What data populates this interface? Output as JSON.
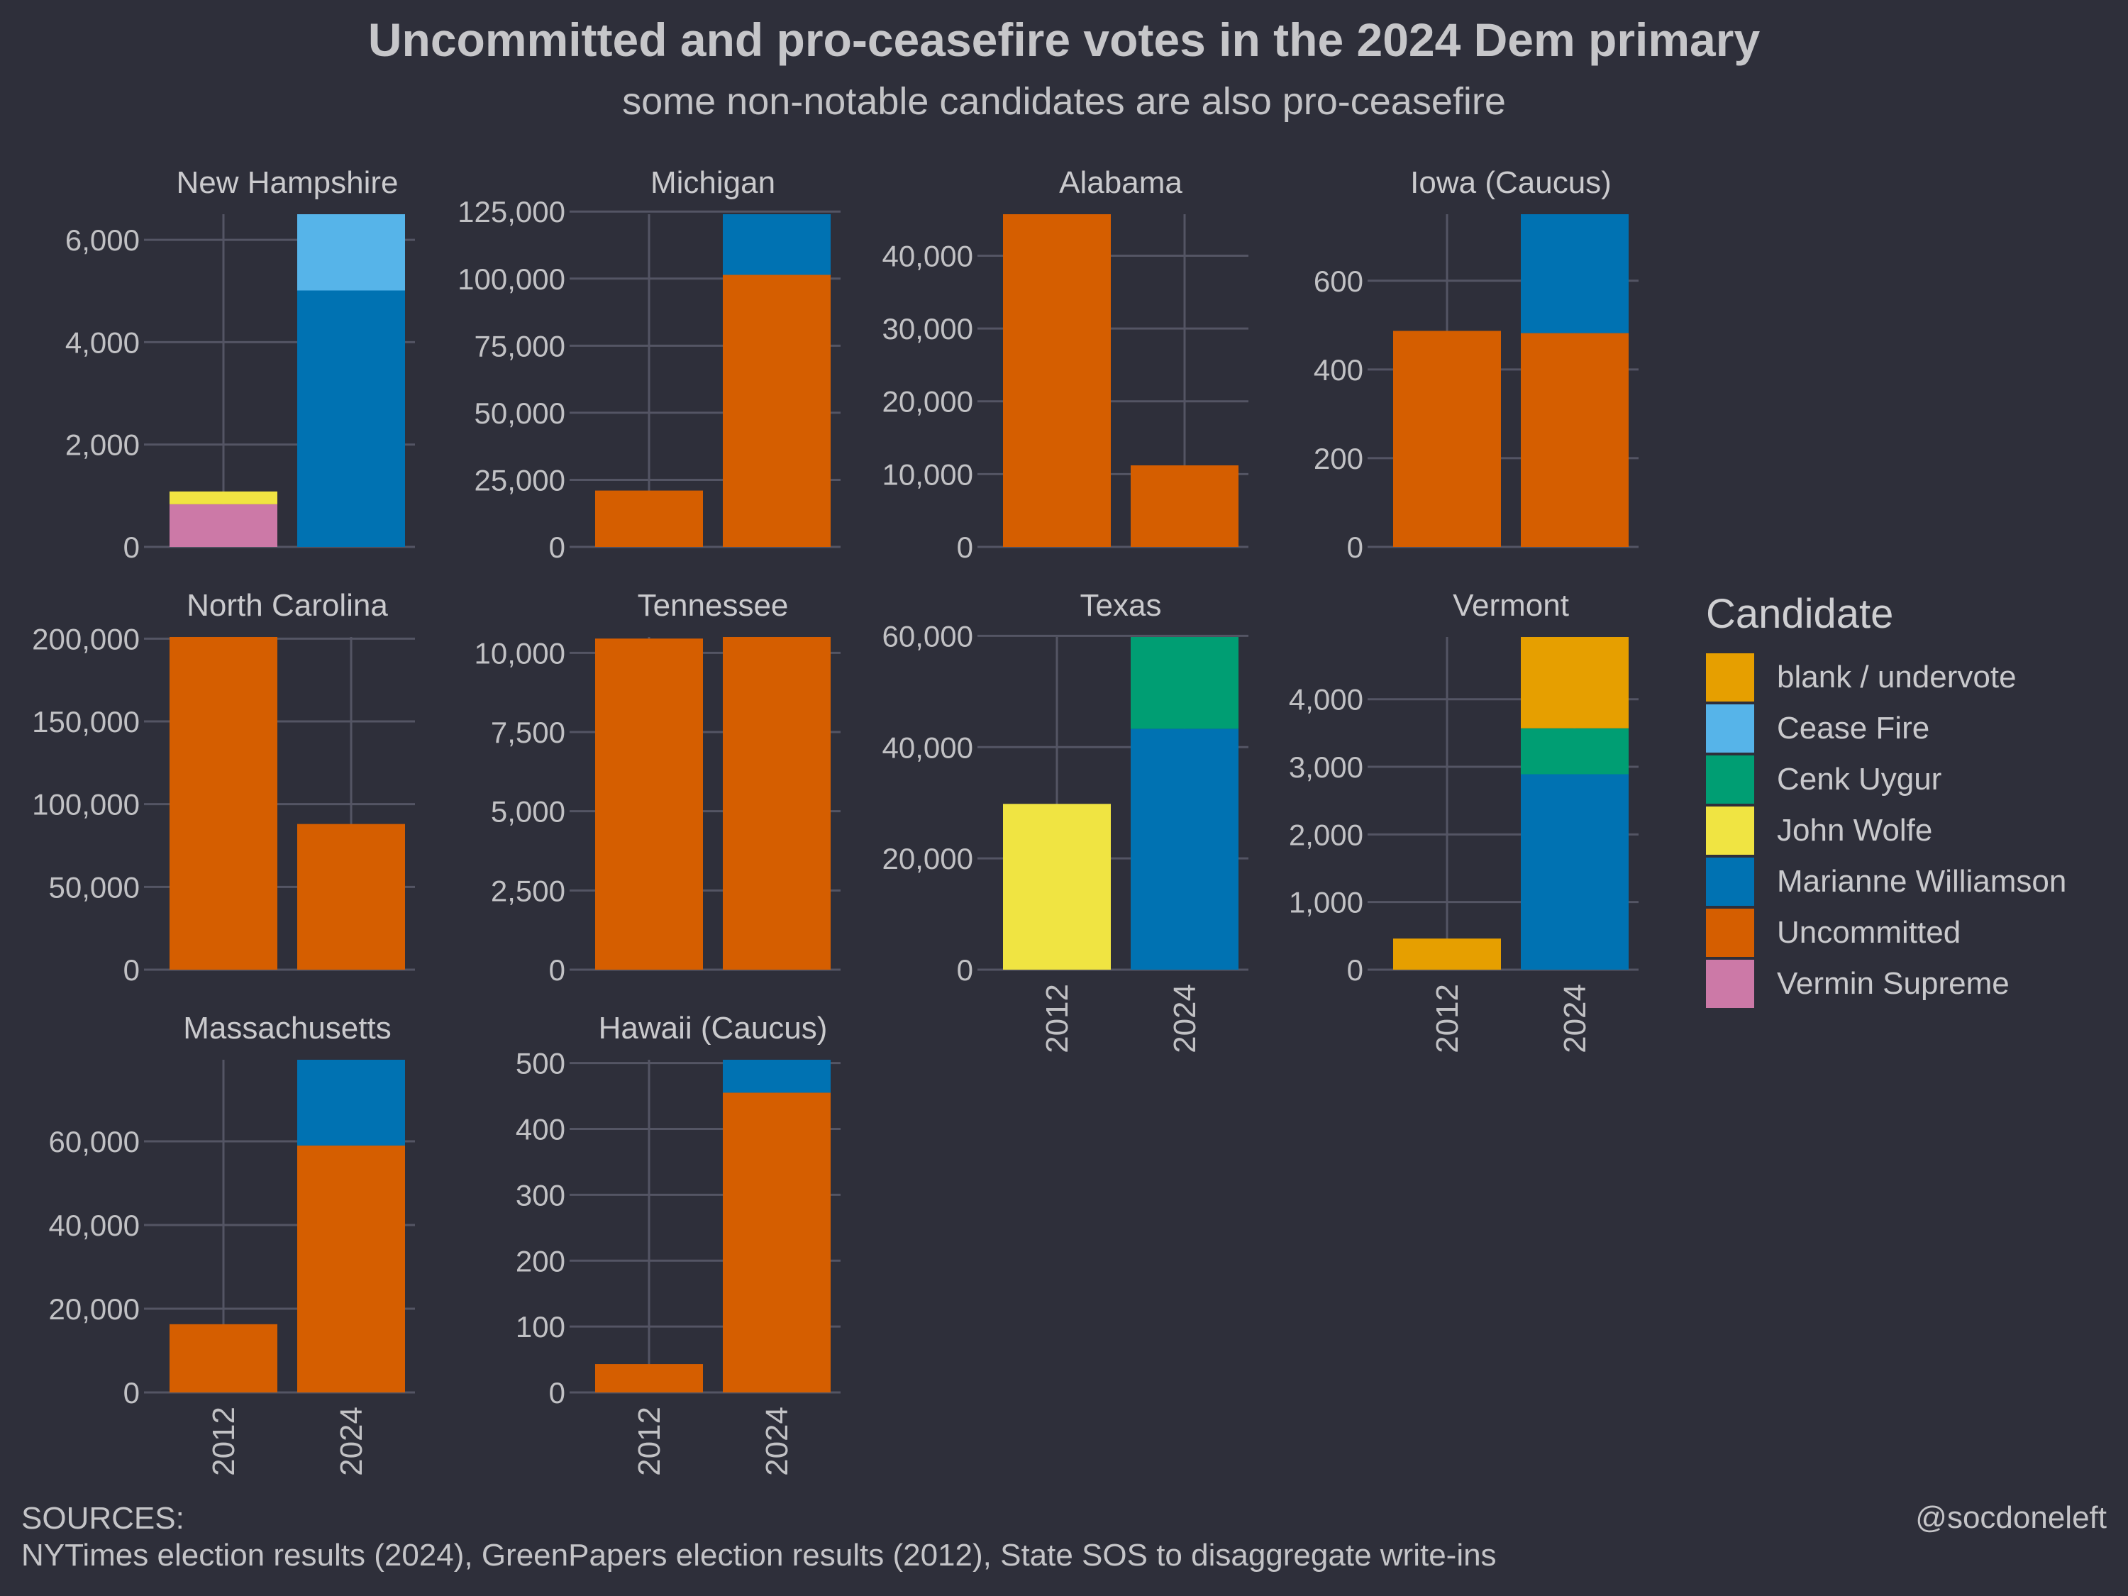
{
  "title": "Uncommitted and pro-ceasefire votes in the 2024 Dem primary",
  "subtitle": "some non-notable candidates are also pro-ceasefire",
  "sources_label": "SOURCES:",
  "sources_text": "NYTimes election results (2024), GreenPapers election results (2012), State SOS to disaggregate write-ins",
  "credit": "@socdoneleft",
  "legend": {
    "title": "Candidate",
    "items": [
      {
        "label": "blank / undervote",
        "color": "#e69f00"
      },
      {
        "label": "Cease Fire",
        "color": "#56b4e9"
      },
      {
        "label": "Cenk Uygur",
        "color": "#009e73"
      },
      {
        "label": "John Wolfe",
        "color": "#f0e442"
      },
      {
        "label": "Marianne Williamson",
        "color": "#0072b2"
      },
      {
        "label": "Uncommitted",
        "color": "#d55e00"
      },
      {
        "label": "Vermin Supreme",
        "color": "#cc79a7"
      }
    ]
  },
  "chart_data": {
    "type": "bar",
    "stacked": true,
    "facet_by": "state",
    "x_categories": [
      "2012",
      "2024"
    ],
    "panels": [
      {
        "state": "New Hampshire",
        "ymax": 6500,
        "ticks": [
          0,
          2000,
          4000,
          6000
        ],
        "bars": {
          "2012": [
            {
              "candidate": "Vermin Supreme",
              "value": 833
            },
            {
              "candidate": "John Wolfe",
              "value": 250
            }
          ],
          "2024": [
            {
              "candidate": "Marianne Williamson",
              "value": 5010
            },
            {
              "candidate": "Cease Fire",
              "value": 1490
            }
          ]
        }
      },
      {
        "state": "Michigan",
        "ymax": 124000,
        "ticks": [
          0,
          25000,
          50000,
          75000,
          100000,
          125000
        ],
        "bars": {
          "2012": [
            {
              "candidate": "Uncommitted",
              "value": 21000
            }
          ],
          "2024": [
            {
              "candidate": "Uncommitted",
              "value": 101400
            },
            {
              "candidate": "Marianne Williamson",
              "value": 22600
            }
          ]
        }
      },
      {
        "state": "Alabama",
        "ymax": 45700,
        "ticks": [
          0,
          10000,
          20000,
          30000,
          40000
        ],
        "bars": {
          "2012": [
            {
              "candidate": "Uncommitted",
              "value": 45700
            }
          ],
          "2024": [
            {
              "candidate": "Uncommitted",
              "value": 11200
            }
          ]
        }
      },
      {
        "state": "Iowa (Caucus)",
        "ymax": 750,
        "ticks": [
          0,
          200,
          400,
          600
        ],
        "bars": {
          "2012": [
            {
              "candidate": "Uncommitted",
              "value": 487
            }
          ],
          "2024": [
            {
              "candidate": "Uncommitted",
              "value": 482
            },
            {
              "candidate": "Marianne Williamson",
              "value": 268
            }
          ]
        }
      },
      {
        "state": "North Carolina",
        "ymax": 201000,
        "ticks": [
          0,
          50000,
          100000,
          150000,
          200000
        ],
        "bars": {
          "2012": [
            {
              "candidate": "Uncommitted",
              "value": 201000
            }
          ],
          "2024": [
            {
              "candidate": "Uncommitted",
              "value": 88000
            }
          ]
        }
      },
      {
        "state": "Tennessee",
        "ymax": 10500,
        "ticks": [
          0,
          2500,
          5000,
          7500,
          10000
        ],
        "bars": {
          "2012": [
            {
              "candidate": "Uncommitted",
              "value": 10450
            }
          ],
          "2024": [
            {
              "candidate": "Uncommitted",
              "value": 10500
            }
          ]
        }
      },
      {
        "state": "Texas",
        "ymax": 59800,
        "ticks": [
          0,
          20000,
          40000,
          60000
        ],
        "bars": {
          "2012": [
            {
              "candidate": "John Wolfe",
              "value": 29800
            }
          ],
          "2024": [
            {
              "candidate": "Marianne Williamson",
              "value": 43300
            },
            {
              "candidate": "Cenk Uygur",
              "value": 16500
            }
          ]
        }
      },
      {
        "state": "Vermont",
        "ymax": 4920,
        "ticks": [
          0,
          1000,
          2000,
          3000,
          4000
        ],
        "bars": {
          "2012": [
            {
              "candidate": "blank / undervote",
              "value": 460
            }
          ],
          "2024": [
            {
              "candidate": "Marianne Williamson",
              "value": 2890
            },
            {
              "candidate": "Cenk Uygur",
              "value": 680
            },
            {
              "candidate": "blank / undervote",
              "value": 1350
            }
          ]
        }
      },
      {
        "state": "Massachusetts",
        "ymax": 79500,
        "ticks": [
          0,
          20000,
          40000,
          60000
        ],
        "bars": {
          "2012": [
            {
              "candidate": "Uncommitted",
              "value": 16300
            }
          ],
          "2024": [
            {
              "candidate": "Uncommitted",
              "value": 59000
            },
            {
              "candidate": "Marianne Williamson",
              "value": 20500
            }
          ]
        }
      },
      {
        "state": "Hawaii (Caucus)",
        "ymax": 505,
        "ticks": [
          0,
          100,
          200,
          300,
          400,
          500
        ],
        "bars": {
          "2012": [
            {
              "candidate": "Uncommitted",
              "value": 43
            }
          ],
          "2024": [
            {
              "candidate": "Uncommitted",
              "value": 455
            },
            {
              "candidate": "Marianne Williamson",
              "value": 50
            }
          ]
        }
      }
    ]
  }
}
